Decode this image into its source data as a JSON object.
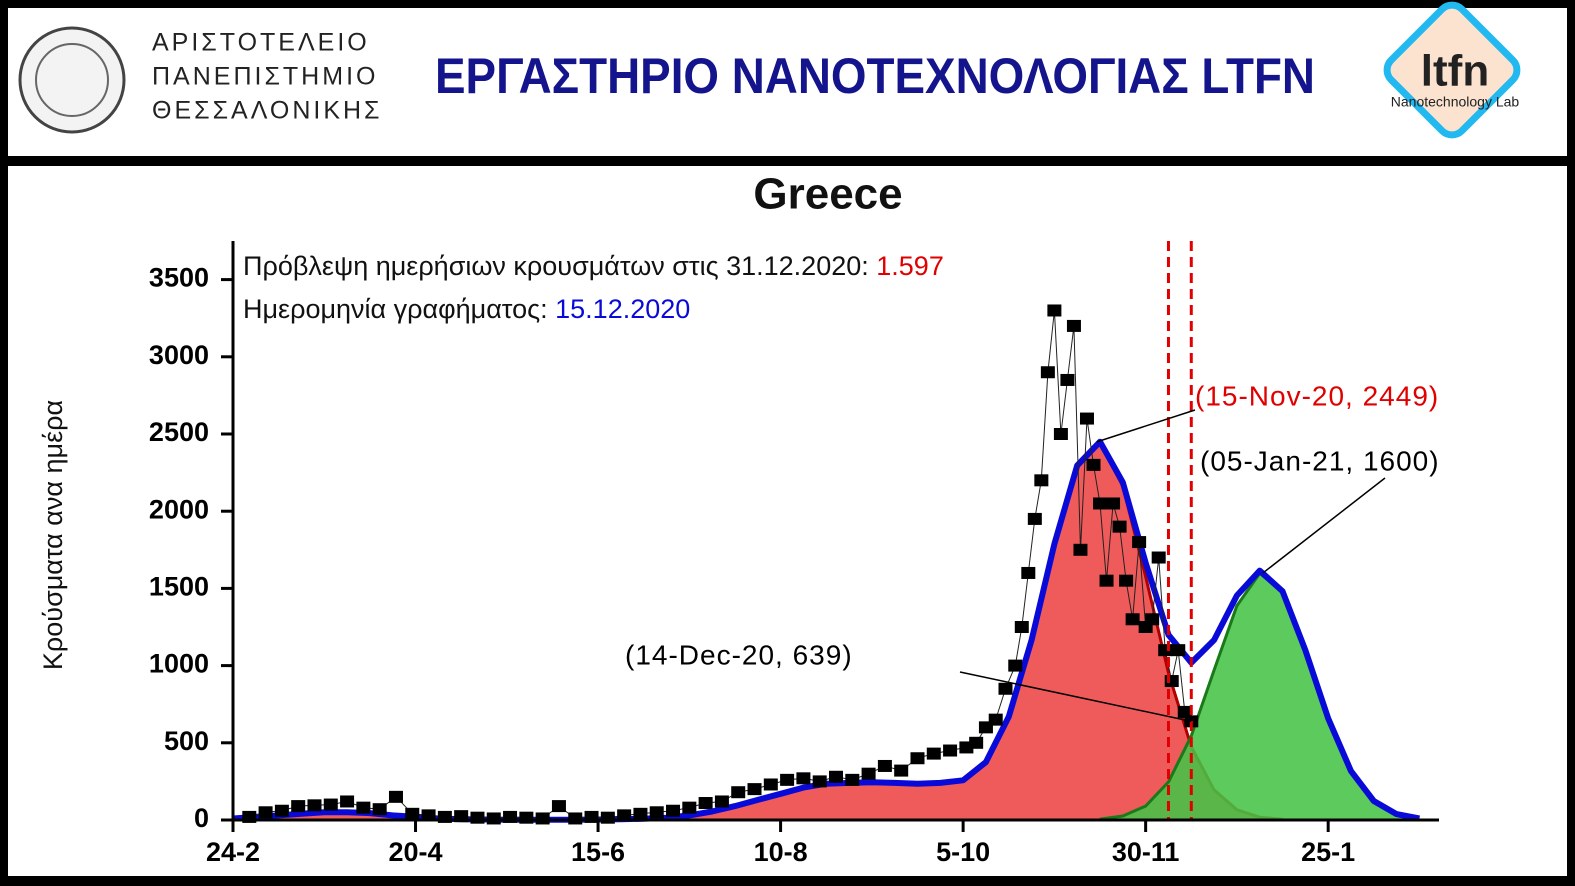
{
  "header": {
    "university": [
      "ΑΡΙΣΤΟΤΕΛΕΙΟ",
      "ΠΑΝΕΠΙΣΤΗΜΙΟ",
      "ΘΕΣΣΑΛΟΝΙΚΗΣ"
    ],
    "title": "ΕΡΓΑΣΤΗΡΙΟ ΝΑΝΟΤΕΧΝΟΛΟΓΙΑΣ LTFN",
    "logo": "ltfn",
    "logo_sub": "Nanotechnology Lab"
  },
  "chart_data": {
    "type": "scatter",
    "title": "Greece",
    "ylabel": "Κρούσματα ανα ημέρα",
    "note1": "Πρόβλεψη ημερήσιων κρουσμάτων στις 31.12.2020:",
    "note1_value": "1.597",
    "note2": "Ημερομηνία γραφήματος:",
    "note2_value": "15.12.2020",
    "xlim": [
      0,
      370
    ],
    "ylim": [
      0,
      3750
    ],
    "xticks": [
      {
        "value": 0,
        "label": "24-2"
      },
      {
        "value": 56,
        "label": "20-4"
      },
      {
        "value": 112,
        "label": "15-6"
      },
      {
        "value": 168,
        "label": "10-8"
      },
      {
        "value": 224,
        "label": "5-10"
      },
      {
        "value": 280,
        "label": "30-11"
      },
      {
        "value": 336,
        "label": "25-1"
      }
    ],
    "yticks": [
      0,
      500,
      1000,
      1500,
      2000,
      2500,
      3000,
      3500
    ],
    "vlines": [
      287,
      294
    ],
    "vline_color": "#e00000",
    "points": {
      "color": "#000000",
      "x": [
        5,
        10,
        15,
        20,
        25,
        30,
        35,
        40,
        45,
        50,
        55,
        60,
        65,
        70,
        75,
        80,
        85,
        90,
        95,
        100,
        105,
        110,
        115,
        120,
        125,
        130,
        135,
        140,
        145,
        150,
        155,
        160,
        165,
        170,
        175,
        180,
        185,
        190,
        195,
        200,
        205,
        210,
        215,
        220,
        225,
        228,
        231,
        234,
        237,
        240,
        242,
        244,
        246,
        248,
        250,
        252,
        254,
        256,
        258,
        260,
        262,
        264,
        266,
        268,
        270,
        272,
        274,
        276,
        278,
        280,
        282,
        284,
        286,
        288,
        290,
        292,
        294
      ],
      "values": [
        20,
        50,
        60,
        90,
        95,
        100,
        120,
        80,
        70,
        150,
        40,
        30,
        20,
        25,
        15,
        10,
        20,
        15,
        10,
        90,
        10,
        20,
        15,
        30,
        40,
        50,
        60,
        80,
        110,
        120,
        180,
        200,
        230,
        260,
        270,
        250,
        280,
        260,
        300,
        350,
        320,
        400,
        430,
        450,
        470,
        500,
        600,
        650,
        850,
        1000,
        1250,
        1600,
        1950,
        2200,
        2900,
        3300,
        2500,
        2850,
        3200,
        1750,
        2600,
        2300,
        2050,
        1550,
        2050,
        1900,
        1550,
        1300,
        1800,
        1250,
        1300,
        1700,
        1100,
        900,
        1100,
        700,
        639
      ]
    },
    "curves": [
      {
        "color": "#b00000",
        "fill": "rgba(235,45,45,0.78)",
        "x": [
          0,
          7,
          14,
          21,
          28,
          35,
          42,
          49,
          56,
          63,
          70,
          77,
          84,
          91,
          98,
          105,
          112,
          119,
          126,
          133,
          140,
          147,
          154,
          161,
          168,
          175,
          182,
          189,
          196,
          203,
          210,
          217,
          224,
          231,
          238,
          245,
          252,
          259,
          266,
          273,
          280,
          287,
          294,
          301,
          308,
          315,
          322
        ],
        "values": [
          10,
          20,
          30,
          40,
          50,
          50,
          45,
          30,
          20,
          10,
          5,
          3,
          2,
          2,
          2,
          2,
          3,
          5,
          8,
          15,
          30,
          55,
          90,
          130,
          170,
          210,
          235,
          240,
          245,
          240,
          235,
          240,
          257,
          375,
          670,
          1166,
          1788,
          2296,
          2444,
          2161,
          1577,
          952,
          474,
          195,
          66,
          18,
          5
        ]
      },
      {
        "color": "#1a7a1a",
        "fill": "rgba(70,195,70,0.88)",
        "x": [
          266,
          273,
          280,
          287,
          294,
          301,
          308,
          315,
          322,
          329,
          336,
          343,
          350,
          357,
          364
        ],
        "values": [
          6,
          26,
          90,
          247,
          545,
          971,
          1388,
          1597,
          1477,
          1099,
          658,
          317,
          123,
          38,
          10
        ]
      },
      {
        "color": "#0a0ad8",
        "fill": null,
        "x": [
          0,
          7,
          14,
          21,
          28,
          35,
          42,
          49,
          56,
          63,
          70,
          77,
          84,
          91,
          98,
          105,
          112,
          119,
          126,
          133,
          140,
          147,
          154,
          161,
          168,
          175,
          182,
          189,
          196,
          203,
          210,
          217,
          224,
          231,
          238,
          245,
          252,
          259,
          266,
          273,
          280,
          287,
          294,
          301,
          308,
          315,
          322,
          329,
          336,
          343,
          350,
          357,
          364
        ],
        "values": [
          10,
          20,
          30,
          40,
          50,
          50,
          45,
          30,
          20,
          10,
          5,
          3,
          2,
          2,
          2,
          2,
          3,
          5,
          8,
          15,
          30,
          55,
          90,
          130,
          170,
          210,
          235,
          240,
          245,
          240,
          235,
          240,
          257,
          375,
          670,
          1166,
          1788,
          2296,
          2450,
          2187,
          1667,
          1199,
          1019,
          1166,
          1454,
          1615,
          1482,
          1099,
          658,
          317,
          123,
          38,
          10
        ]
      }
    ],
    "annotations": [
      {
        "text": "(15-Nov-20, 2449)",
        "x": 265,
        "y": 2449,
        "color": "#e00000"
      },
      {
        "text": "(05-Jan-21, 1600)",
        "x": 316,
        "y": 1600,
        "color": "#000000"
      },
      {
        "text": "(14-Dec-20, 639)",
        "x": 294,
        "y": 639,
        "color": "#000000"
      }
    ]
  }
}
